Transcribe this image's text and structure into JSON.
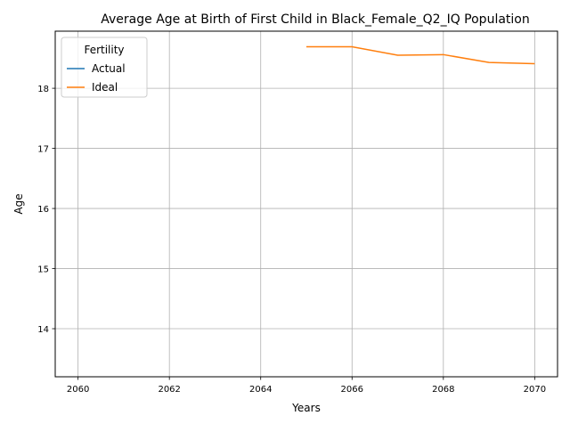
{
  "chart_data": {
    "type": "line",
    "title": "Average Age at Birth of First Child in Black_Female_Q2_IQ Population",
    "xlabel": "Years",
    "ylabel": "Age",
    "xlim": [
      2059.5,
      2070.5
    ],
    "ylim": [
      13.2,
      18.95
    ],
    "xticks": [
      2060,
      2062,
      2064,
      2066,
      2068,
      2070
    ],
    "yticks": [
      14,
      15,
      16,
      17,
      18
    ],
    "grid": true,
    "legend": {
      "title": "Fertility",
      "placement": "upper-left"
    },
    "series": [
      {
        "name": "Actual",
        "color": "#1f77b4",
        "x": [],
        "y": []
      },
      {
        "name": "Ideal",
        "color": "#ff7f0e",
        "x": [
          2065,
          2066,
          2067,
          2068,
          2069,
          2070
        ],
        "y": [
          18.69,
          18.69,
          18.55,
          18.56,
          18.43,
          18.41
        ]
      }
    ]
  }
}
